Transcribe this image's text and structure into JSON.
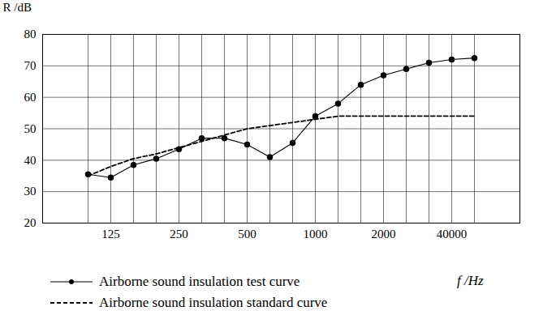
{
  "chart_data": {
    "type": "line",
    "x_label": "f /Hz",
    "y_label": "R /dB",
    "categories": [
      null,
      "125",
      null,
      null,
      "250",
      null,
      null,
      "500",
      null,
      null,
      "1000",
      null,
      null,
      "2000",
      null,
      null,
      "40000",
      null
    ],
    "series": [
      {
        "name": "Airborne sound insulation test curve",
        "color": "#000000",
        "marker": "circle",
        "line_style": "solid",
        "values": [
          35.5,
          34.5,
          38.5,
          40.5,
          43.5,
          47,
          47,
          45,
          41,
          45.5,
          54,
          58,
          64,
          67,
          69,
          71,
          72,
          72.5
        ]
      },
      {
        "name": "Airborne sound insulation standard curve",
        "color": "#000000",
        "marker": "none",
        "line_style": "dashed",
        "values": [
          35,
          38,
          40.5,
          42,
          44,
          46,
          48,
          50,
          51,
          52,
          53,
          54,
          54,
          54,
          54,
          54,
          54,
          54
        ]
      }
    ],
    "ylim": [
      20,
      80
    ],
    "yticks": [
      20,
      30,
      40,
      50,
      60,
      70,
      80
    ],
    "grid": true,
    "legend": "bottom"
  }
}
